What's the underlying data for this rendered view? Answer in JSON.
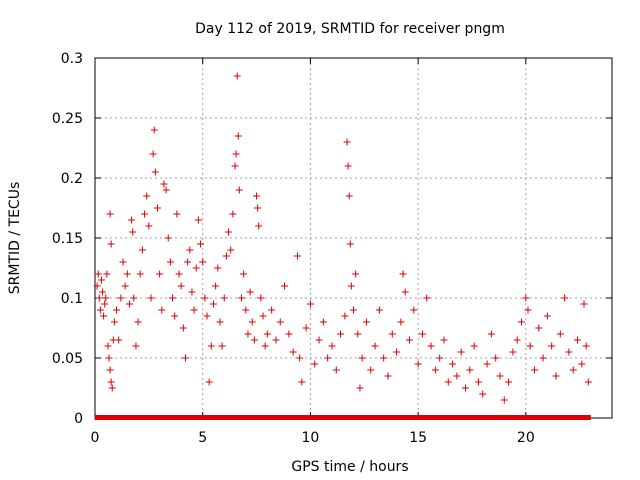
{
  "chart_data": {
    "type": "scatter",
    "title": "Day 112 of 2019, SRMTID for receiver pngm",
    "xlabel": "GPS time / hours",
    "ylabel": "SRMTID / TECUs",
    "xlim": [
      0,
      24
    ],
    "ylim": [
      0,
      0.3
    ],
    "x_ticks": [
      0,
      5,
      10,
      15,
      20
    ],
    "x_tick_labels": [
      "0",
      "5",
      "10",
      "15",
      "20"
    ],
    "y_ticks": [
      0,
      0.05,
      0.1,
      0.15,
      0.2,
      0.25,
      0.3
    ],
    "y_tick_labels": [
      "0",
      "0.05",
      "0.1",
      "0.15",
      "0.2",
      "0.25",
      "0.3"
    ],
    "grid": true,
    "marker": "plus",
    "color": "#e00000",
    "series": [
      {
        "name": "SRMTID",
        "points": [
          [
            0.1,
            0.11
          ],
          [
            0.15,
            0.12
          ],
          [
            0.2,
            0.1
          ],
          [
            0.25,
            0.09
          ],
          [
            0.3,
            0.115
          ],
          [
            0.35,
            0.105
          ],
          [
            0.4,
            0.085
          ],
          [
            0.45,
            0.095
          ],
          [
            0.5,
            0.1
          ],
          [
            0.55,
            0.12
          ],
          [
            0.6,
            0.06
          ],
          [
            0.65,
            0.05
          ],
          [
            0.7,
            0.04
          ],
          [
            0.75,
            0.03
          ],
          [
            0.8,
            0.025
          ],
          [
            0.85,
            0.065
          ],
          [
            0.7,
            0.17
          ],
          [
            0.75,
            0.145
          ],
          [
            0.9,
            0.08
          ],
          [
            1.0,
            0.09
          ],
          [
            1.1,
            0.065
          ],
          [
            1.2,
            0.1
          ],
          [
            1.3,
            0.13
          ],
          [
            1.4,
            0.11
          ],
          [
            1.5,
            0.12
          ],
          [
            1.6,
            0.095
          ],
          [
            1.7,
            0.165
          ],
          [
            1.75,
            0.155
          ],
          [
            1.8,
            0.1
          ],
          [
            1.9,
            0.06
          ],
          [
            2.0,
            0.08
          ],
          [
            2.1,
            0.12
          ],
          [
            2.2,
            0.14
          ],
          [
            2.3,
            0.17
          ],
          [
            2.4,
            0.185
          ],
          [
            2.5,
            0.16
          ],
          [
            2.6,
            0.1
          ],
          [
            2.7,
            0.22
          ],
          [
            2.75,
            0.24
          ],
          [
            2.8,
            0.205
          ],
          [
            2.9,
            0.175
          ],
          [
            3.0,
            0.12
          ],
          [
            3.1,
            0.09
          ],
          [
            3.2,
            0.195
          ],
          [
            3.3,
            0.19
          ],
          [
            3.4,
            0.15
          ],
          [
            3.5,
            0.13
          ],
          [
            3.6,
            0.1
          ],
          [
            3.7,
            0.085
          ],
          [
            3.8,
            0.17
          ],
          [
            3.9,
            0.12
          ],
          [
            4.0,
            0.11
          ],
          [
            4.1,
            0.075
          ],
          [
            4.2,
            0.05
          ],
          [
            4.3,
            0.13
          ],
          [
            4.4,
            0.14
          ],
          [
            4.5,
            0.105
          ],
          [
            4.6,
            0.09
          ],
          [
            4.7,
            0.125
          ],
          [
            4.8,
            0.165
          ],
          [
            4.9,
            0.145
          ],
          [
            5.0,
            0.13
          ],
          [
            5.1,
            0.1
          ],
          [
            5.2,
            0.085
          ],
          [
            5.3,
            0.03
          ],
          [
            5.4,
            0.06
          ],
          [
            5.5,
            0.095
          ],
          [
            5.6,
            0.11
          ],
          [
            5.7,
            0.125
          ],
          [
            5.8,
            0.08
          ],
          [
            5.9,
            0.06
          ],
          [
            6.0,
            0.1
          ],
          [
            6.1,
            0.135
          ],
          [
            6.2,
            0.155
          ],
          [
            6.3,
            0.14
          ],
          [
            6.4,
            0.17
          ],
          [
            6.5,
            0.21
          ],
          [
            6.55,
            0.22
          ],
          [
            6.6,
            0.285
          ],
          [
            6.65,
            0.235
          ],
          [
            6.7,
            0.19
          ],
          [
            6.8,
            0.1
          ],
          [
            6.9,
            0.12
          ],
          [
            7.0,
            0.09
          ],
          [
            7.1,
            0.07
          ],
          [
            7.2,
            0.105
          ],
          [
            7.3,
            0.08
          ],
          [
            7.4,
            0.065
          ],
          [
            7.5,
            0.185
          ],
          [
            7.55,
            0.175
          ],
          [
            7.6,
            0.16
          ],
          [
            7.7,
            0.1
          ],
          [
            7.8,
            0.085
          ],
          [
            7.9,
            0.06
          ],
          [
            8.0,
            0.07
          ],
          [
            8.2,
            0.09
          ],
          [
            8.4,
            0.065
          ],
          [
            8.6,
            0.08
          ],
          [
            8.8,
            0.11
          ],
          [
            9.0,
            0.07
          ],
          [
            9.2,
            0.055
          ],
          [
            9.4,
            0.135
          ],
          [
            9.5,
            0.05
          ],
          [
            9.6,
            0.03
          ],
          [
            9.8,
            0.075
          ],
          [
            10.0,
            0.095
          ],
          [
            10.2,
            0.045
          ],
          [
            10.4,
            0.065
          ],
          [
            10.6,
            0.08
          ],
          [
            10.8,
            0.05
          ],
          [
            11.0,
            0.06
          ],
          [
            11.2,
            0.04
          ],
          [
            11.4,
            0.07
          ],
          [
            11.6,
            0.085
          ],
          [
            11.7,
            0.23
          ],
          [
            11.75,
            0.21
          ],
          [
            11.8,
            0.185
          ],
          [
            11.85,
            0.145
          ],
          [
            11.9,
            0.11
          ],
          [
            12.0,
            0.09
          ],
          [
            12.1,
            0.12
          ],
          [
            12.2,
            0.07
          ],
          [
            12.3,
            0.025
          ],
          [
            12.4,
            0.05
          ],
          [
            12.6,
            0.08
          ],
          [
            12.8,
            0.04
          ],
          [
            13.0,
            0.06
          ],
          [
            13.2,
            0.09
          ],
          [
            13.4,
            0.05
          ],
          [
            13.6,
            0.035
          ],
          [
            13.8,
            0.07
          ],
          [
            14.0,
            0.055
          ],
          [
            14.2,
            0.08
          ],
          [
            14.3,
            0.12
          ],
          [
            14.4,
            0.105
          ],
          [
            14.6,
            0.065
          ],
          [
            14.8,
            0.09
          ],
          [
            15.0,
            0.045
          ],
          [
            15.2,
            0.07
          ],
          [
            15.4,
            0.1
          ],
          [
            15.6,
            0.06
          ],
          [
            15.8,
            0.04
          ],
          [
            16.0,
            0.05
          ],
          [
            16.2,
            0.065
          ],
          [
            16.4,
            0.03
          ],
          [
            16.6,
            0.045
          ],
          [
            16.8,
            0.035
          ],
          [
            17.0,
            0.055
          ],
          [
            17.2,
            0.025
          ],
          [
            17.4,
            0.04
          ],
          [
            17.6,
            0.06
          ],
          [
            17.8,
            0.03
          ],
          [
            18.0,
            0.02
          ],
          [
            18.2,
            0.045
          ],
          [
            18.4,
            0.07
          ],
          [
            18.6,
            0.05
          ],
          [
            18.8,
            0.035
          ],
          [
            19.0,
            0.015
          ],
          [
            19.2,
            0.03
          ],
          [
            19.4,
            0.055
          ],
          [
            19.6,
            0.065
          ],
          [
            19.8,
            0.08
          ],
          [
            20.0,
            0.1
          ],
          [
            20.1,
            0.09
          ],
          [
            20.2,
            0.06
          ],
          [
            20.4,
            0.04
          ],
          [
            20.6,
            0.075
          ],
          [
            20.8,
            0.05
          ],
          [
            21.0,
            0.085
          ],
          [
            21.2,
            0.06
          ],
          [
            21.4,
            0.035
          ],
          [
            21.6,
            0.07
          ],
          [
            21.8,
            0.1
          ],
          [
            22.0,
            0.055
          ],
          [
            22.2,
            0.04
          ],
          [
            22.4,
            0.065
          ],
          [
            22.6,
            0.045
          ],
          [
            22.7,
            0.095
          ],
          [
            22.8,
            0.06
          ],
          [
            22.9,
            0.03
          ]
        ]
      }
    ]
  }
}
